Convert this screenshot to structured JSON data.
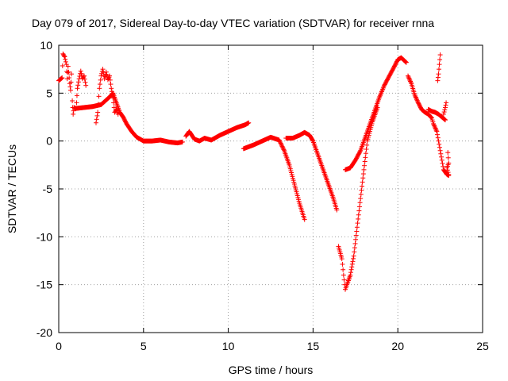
{
  "chart_data": {
    "type": "scatter",
    "title": "Day 079 of 2017, Sidereal Day-to-day VTEC variation (SDTVAR) for receiver rnna",
    "xlabel": "GPS time / hours",
    "ylabel": "SDTVAR / TECUs",
    "xlim": [
      0,
      25
    ],
    "ylim": [
      -20,
      10
    ],
    "x_ticks": [
      0,
      5,
      10,
      15,
      20,
      25
    ],
    "y_ticks": [
      -20,
      -15,
      -10,
      -5,
      0,
      5,
      10
    ],
    "grid": true,
    "marker": "+",
    "marker_color": "#ff0000",
    "segments": [
      [
        [
          0.0,
          6.3
        ],
        [
          0.2,
          6.6
        ],
        [
          0.25,
          9.1
        ],
        [
          0.35,
          8.8
        ],
        [
          0.45,
          8.0
        ],
        [
          0.5,
          6.5
        ],
        [
          0.55,
          7.8
        ],
        [
          0.65,
          6.0
        ],
        [
          0.7,
          5.3
        ],
        [
          0.75,
          7.0
        ]
      ],
      [
        [
          0.8,
          4.2
        ],
        [
          0.85,
          2.8
        ],
        [
          0.9,
          3.5
        ],
        [
          1.0,
          3.4
        ],
        [
          1.5,
          3.5
        ],
        [
          2.0,
          3.6
        ],
        [
          2.5,
          3.8
        ],
        [
          3.0,
          4.6
        ],
        [
          3.2,
          5.0
        ],
        [
          3.4,
          4.0
        ],
        [
          3.6,
          3.0
        ],
        [
          3.8,
          2.5
        ],
        [
          4.0,
          1.8
        ],
        [
          4.3,
          1.0
        ],
        [
          4.6,
          0.4
        ],
        [
          5.0,
          0.0
        ],
        [
          5.5,
          0.0
        ],
        [
          6.0,
          0.1
        ],
        [
          6.5,
          -0.1
        ],
        [
          7.0,
          -0.2
        ],
        [
          7.3,
          -0.1
        ]
      ],
      [
        [
          1.05,
          4.0
        ],
        [
          1.1,
          5.5
        ],
        [
          1.2,
          6.5
        ],
        [
          1.3,
          7.3
        ],
        [
          1.4,
          6.5
        ],
        [
          1.5,
          6.8
        ],
        [
          1.6,
          5.8
        ]
      ],
      [
        [
          2.2,
          1.9
        ],
        [
          2.3,
          3.0
        ],
        [
          2.4,
          5.5
        ],
        [
          2.5,
          6.8
        ],
        [
          2.6,
          7.5
        ],
        [
          2.7,
          6.5
        ],
        [
          2.8,
          7.2
        ],
        [
          2.9,
          6.4
        ],
        [
          3.0,
          6.8
        ],
        [
          3.1,
          5.5
        ],
        [
          3.2,
          4.5
        ],
        [
          3.3,
          3.0
        ],
        [
          3.4,
          3.3
        ],
        [
          3.5,
          2.8
        ]
      ],
      [
        [
          7.5,
          0.5
        ],
        [
          7.7,
          1.0
        ],
        [
          8.0,
          0.2
        ],
        [
          8.3,
          0.0
        ],
        [
          8.6,
          0.3
        ],
        [
          9.0,
          0.1
        ],
        [
          9.5,
          0.6
        ],
        [
          10.0,
          1.0
        ],
        [
          10.5,
          1.4
        ],
        [
          11.0,
          1.7
        ],
        [
          11.2,
          1.9
        ]
      ],
      [
        [
          10.9,
          -0.8
        ],
        [
          11.5,
          -0.4
        ],
        [
          12.0,
          0.0
        ],
        [
          12.5,
          0.4
        ],
        [
          13.0,
          0.1
        ],
        [
          13.3,
          -1.0
        ],
        [
          13.6,
          -2.5
        ],
        [
          13.9,
          -4.5
        ],
        [
          14.2,
          -6.5
        ],
        [
          14.5,
          -8.2
        ]
      ],
      [
        [
          13.4,
          0.3
        ],
        [
          13.8,
          0.3
        ],
        [
          14.2,
          0.6
        ],
        [
          14.5,
          0.9
        ],
        [
          14.8,
          0.6
        ],
        [
          15.0,
          0.0
        ],
        [
          15.3,
          -1.5
        ],
        [
          15.6,
          -3.0
        ],
        [
          15.9,
          -4.5
        ],
        [
          16.2,
          -6.0
        ],
        [
          16.4,
          -7.2
        ]
      ],
      [
        [
          16.5,
          -11.0
        ],
        [
          16.7,
          -12.3
        ],
        [
          16.8,
          -14.0
        ],
        [
          16.9,
          -15.5
        ],
        [
          17.0,
          -15.0
        ],
        [
          17.2,
          -14.0
        ],
        [
          17.4,
          -12.0
        ],
        [
          17.6,
          -9.0
        ],
        [
          17.8,
          -6.0
        ],
        [
          18.0,
          -3.0
        ],
        [
          18.2,
          0.0
        ],
        [
          18.5,
          2.0
        ],
        [
          18.8,
          3.5
        ]
      ],
      [
        [
          16.9,
          -3.0
        ],
        [
          17.2,
          -2.8
        ],
        [
          17.5,
          -2.0
        ],
        [
          17.8,
          -1.0
        ],
        [
          18.0,
          0.0
        ],
        [
          18.3,
          1.5
        ],
        [
          18.6,
          3.0
        ],
        [
          18.9,
          4.5
        ],
        [
          19.2,
          5.8
        ],
        [
          19.5,
          6.8
        ],
        [
          19.8,
          7.8
        ],
        [
          20.0,
          8.5
        ],
        [
          20.2,
          8.7
        ],
        [
          20.5,
          8.2
        ]
      ],
      [
        [
          20.6,
          6.8
        ],
        [
          20.8,
          6.0
        ],
        [
          21.0,
          4.8
        ],
        [
          21.2,
          4.0
        ],
        [
          21.4,
          3.3
        ],
        [
          21.6,
          3.0
        ],
        [
          21.8,
          2.8
        ],
        [
          22.0,
          2.4
        ],
        [
          22.1,
          1.8
        ],
        [
          22.3,
          1.0
        ],
        [
          22.4,
          0.0
        ],
        [
          22.5,
          -1.0
        ],
        [
          22.6,
          -2.0
        ],
        [
          22.7,
          -3.0
        ],
        [
          22.9,
          -3.5
        ],
        [
          23.0,
          -3.6
        ]
      ],
      [
        [
          21.8,
          3.3
        ],
        [
          22.0,
          3.1
        ],
        [
          22.2,
          3.0
        ],
        [
          22.4,
          2.8
        ],
        [
          22.6,
          2.5
        ],
        [
          22.8,
          2.2
        ]
      ],
      [
        [
          22.35,
          6.3
        ],
        [
          22.4,
          7.0
        ],
        [
          22.45,
          8.0
        ],
        [
          22.5,
          9.0
        ]
      ],
      [
        [
          22.7,
          2.8
        ],
        [
          22.8,
          3.5
        ],
        [
          22.85,
          4.0
        ]
      ],
      [
        [
          22.95,
          -1.2
        ],
        [
          23.0,
          -2.3
        ],
        [
          22.9,
          -2.8
        ],
        [
          23.0,
          -3.5
        ]
      ]
    ]
  }
}
